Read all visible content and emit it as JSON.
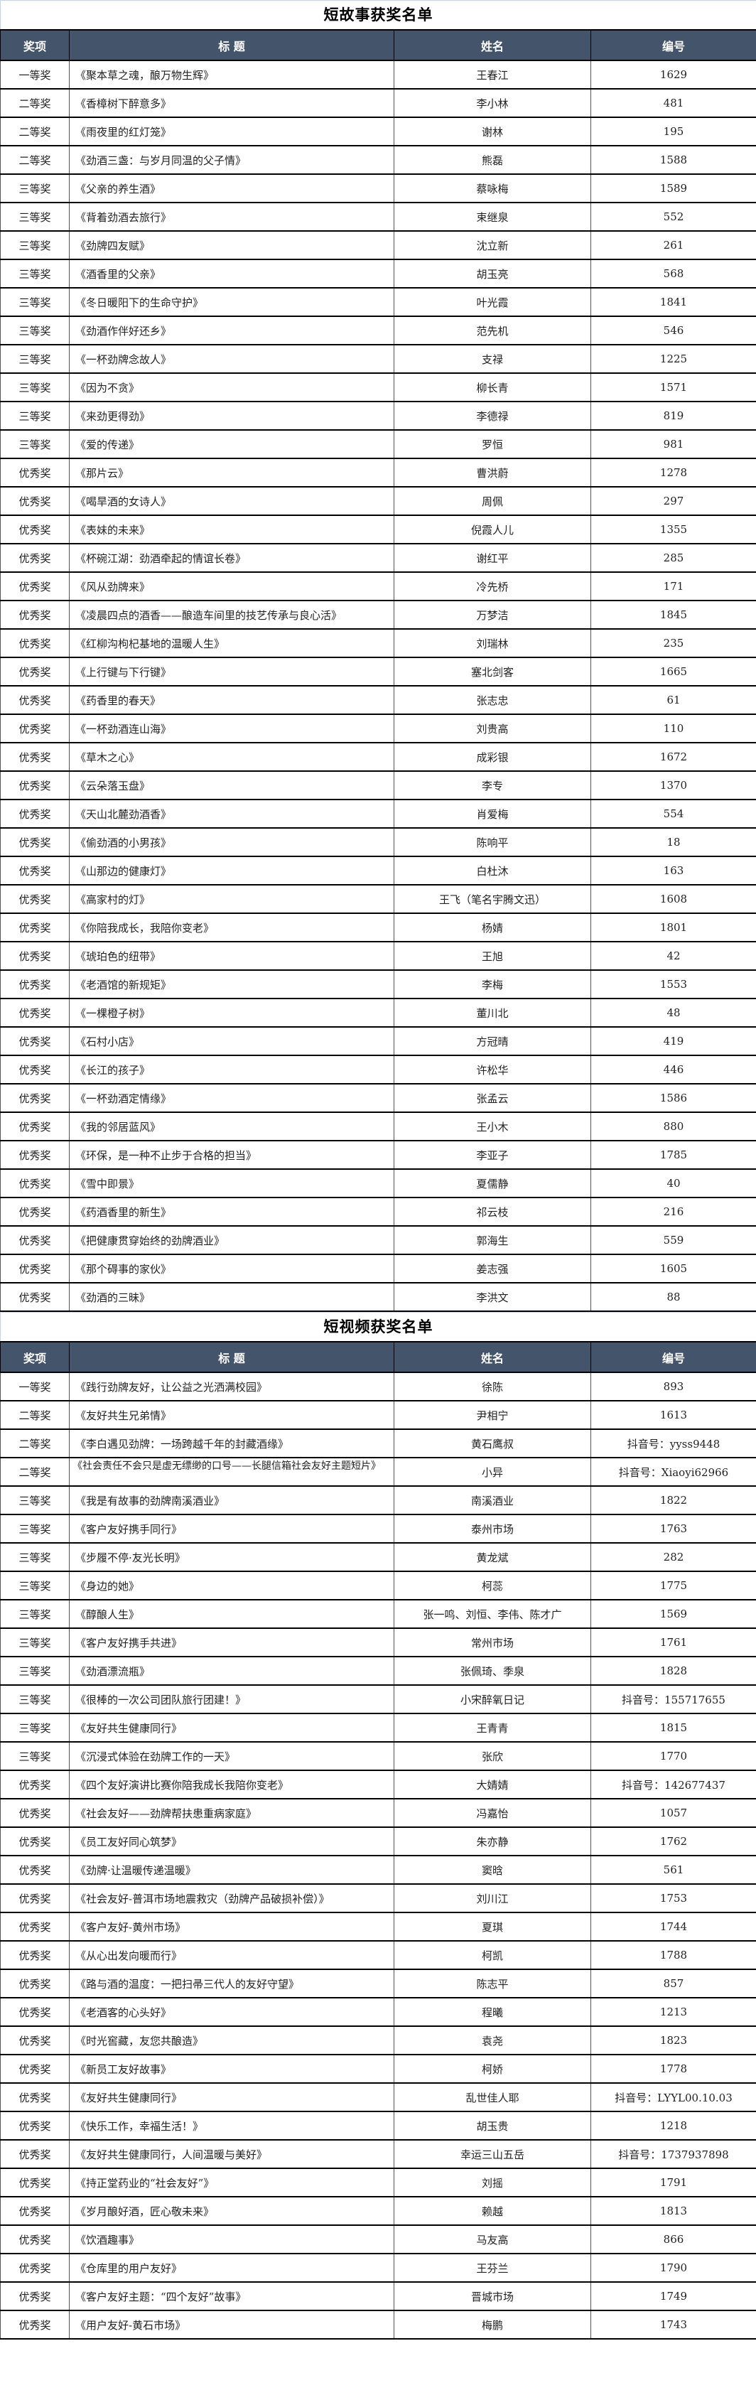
{
  "header_bg": "#44546a",
  "columns": {
    "award": "奖项",
    "title": "标  题",
    "name": "姓名",
    "number": "编号"
  },
  "tables": [
    {
      "title": "短故事获奖名单",
      "rows": [
        [
          "一等奖",
          "《聚本草之魂，酿万物生辉》",
          "王春江",
          "1629"
        ],
        [
          "二等奖",
          "《香樟树下醉意多》",
          "李小林",
          "481"
        ],
        [
          "二等奖",
          "《雨夜里的红灯笼》",
          "谢林",
          "195"
        ],
        [
          "二等奖",
          "《劲酒三盏：与岁月同温的父子情》",
          "熊磊",
          "1588"
        ],
        [
          "三等奖",
          "《父亲的养生酒》",
          "蔡咏梅",
          "1589"
        ],
        [
          "三等奖",
          "《背着劲酒去旅行》",
          "束继泉",
          "552"
        ],
        [
          "三等奖",
          "《劲牌四友赋》",
          "沈立新",
          "261"
        ],
        [
          "三等奖",
          "《酒香里的父亲》",
          "胡玉亮",
          "568"
        ],
        [
          "三等奖",
          "《冬日暖阳下的生命守护》",
          "叶光霞",
          "1841"
        ],
        [
          "三等奖",
          "《劲酒作伴好还乡》",
          "范先机",
          "546"
        ],
        [
          "三等奖",
          "《一杯劲牌念故人》",
          "支禄",
          "1225"
        ],
        [
          "三等奖",
          "《因为不贪》",
          "柳长青",
          "1571"
        ],
        [
          "三等奖",
          "《来劲更得劲》",
          "李德禄",
          "819"
        ],
        [
          "三等奖",
          "《爱的传递》",
          "罗恒",
          "981"
        ],
        [
          "优秀奖",
          "《那片云》",
          "曹洪蔚",
          "1278"
        ],
        [
          "优秀奖",
          "《喝旱酒的女诗人》",
          "周佩",
          "297"
        ],
        [
          "优秀奖",
          "《表妹的未来》",
          "倪霞人儿",
          "1355"
        ],
        [
          "优秀奖",
          "《杯碗江湖：劲酒牵起的情谊长卷》",
          "谢红平",
          "285"
        ],
        [
          "优秀奖",
          "《风从劲牌来》",
          "冷先桥",
          "171"
        ],
        [
          "优秀奖",
          "《凌晨四点的酒香——酿造车间里的技艺传承与良心活》",
          "万梦洁",
          "1845"
        ],
        [
          "优秀奖",
          "《红柳沟枸杞基地的温暖人生》",
          "刘瑞林",
          "235"
        ],
        [
          "优秀奖",
          "《上行键与下行键》",
          "塞北剑客",
          "1665"
        ],
        [
          "优秀奖",
          "《药香里的春天》",
          "张志忠",
          "61"
        ],
        [
          "优秀奖",
          "《一杯劲酒连山海》",
          "刘贵高",
          "110"
        ],
        [
          "优秀奖",
          "《草木之心》",
          "成彩银",
          "1672"
        ],
        [
          "优秀奖",
          "《云朵落玉盘》",
          "李专",
          "1370"
        ],
        [
          "优秀奖",
          "《天山北麓劲酒香》",
          "肖爱梅",
          "554"
        ],
        [
          "优秀奖",
          "《偷劲酒的小男孩》",
          "陈响平",
          "18"
        ],
        [
          "优秀奖",
          "《山那边的健康灯》",
          "白杜沐",
          "163"
        ],
        [
          "优秀奖",
          "《高家村的灯》",
          "王飞（笔名宇腾文迅）",
          "1608"
        ],
        [
          "优秀奖",
          "《你陪我成长，我陪你变老》",
          "杨婧",
          "1801"
        ],
        [
          "优秀奖",
          "《琥珀色的纽带》",
          "王旭",
          "42"
        ],
        [
          "优秀奖",
          "《老酒馆的新规矩》",
          "李梅",
          "1553"
        ],
        [
          "优秀奖",
          "《一棵橙子树》",
          "董川北",
          "48"
        ],
        [
          "优秀奖",
          "《石村小店》",
          "方冠晴",
          "419"
        ],
        [
          "优秀奖",
          "《长江的孩子》",
          "许松华",
          "446"
        ],
        [
          "优秀奖",
          "《一杯劲酒定情缘》",
          "张孟云",
          "1586"
        ],
        [
          "优秀奖",
          "《我的邻居蓝风》",
          "王小木",
          "880"
        ],
        [
          "优秀奖",
          "《环保，是一种不止步于合格的担当》",
          "李亚子",
          "1785"
        ],
        [
          "优秀奖",
          "《雪中即景》",
          "夏儒静",
          "40"
        ],
        [
          "优秀奖",
          "《药酒香里的新生》",
          "祁云枝",
          "216"
        ],
        [
          "优秀奖",
          "《把健康贯穿始终的劲牌酒业》",
          "郭海生",
          "559"
        ],
        [
          "优秀奖",
          "《那个碍事的家伙》",
          "姜志强",
          "1605"
        ],
        [
          "优秀奖",
          "《劲酒的三昧》",
          "李洪文",
          "88"
        ]
      ]
    },
    {
      "title": "短视频获奖名单",
      "rows": [
        [
          "一等奖",
          "《践行劲牌友好，让公益之光洒满校园》",
          "徐陈",
          "893"
        ],
        [
          "二等奖",
          "《友好共生兄弟情》",
          "尹相宁",
          "1613"
        ],
        [
          "二等奖",
          "《李白遇见劲牌：一场跨越千年的封藏酒缘》",
          "黄石鹰叔",
          "抖音号：yyss9448"
        ],
        [
          "二等奖",
          "《社会责任不会只是虚无缥缈的口号——长腿信箱社会友好主题短片》",
          "小异",
          "抖音号：Xiaoyi62966"
        ],
        [
          "三等奖",
          "《我是有故事的劲牌南溪酒业》",
          "南溪酒业",
          "1822"
        ],
        [
          "三等奖",
          "《客户友好携手同行》",
          "泰州市场",
          "1763"
        ],
        [
          "三等奖",
          "《步履不停·友光长明》",
          "黄龙斌",
          "282"
        ],
        [
          "三等奖",
          "《身边的她》",
          "柯蕊",
          "1775"
        ],
        [
          "三等奖",
          "《醇酿人生》",
          "张一鸣、刘恒、李伟、陈才广",
          "1569"
        ],
        [
          "三等奖",
          "《客户友好携手共进》",
          "常州市场",
          "1761"
        ],
        [
          "三等奖",
          "《劲酒漂流瓶》",
          "张佩琦、季泉",
          "1828"
        ],
        [
          "三等奖",
          "《很棒的一次公司团队旅行团建！》",
          "小宋醉氧日记",
          "抖音号：155717655"
        ],
        [
          "三等奖",
          "《友好共生健康同行》",
          "王青青",
          "1815"
        ],
        [
          "三等奖",
          "《沉浸式体验在劲牌工作的一天》",
          "张欣",
          "1770"
        ],
        [
          "优秀奖",
          "《四个友好演讲比赛你陪我成长我陪你变老》",
          "大婧婧",
          "抖音号：142677437"
        ],
        [
          "优秀奖",
          "《社会友好——劲牌帮扶患重病家庭》",
          "冯嘉怡",
          "1057"
        ],
        [
          "优秀奖",
          "《员工友好同心筑梦》",
          "朱亦静",
          "1762"
        ],
        [
          "优秀奖",
          "《劲牌·让温暖传递温暖》",
          "窦晗",
          "561"
        ],
        [
          "优秀奖",
          "《社会友好-普洱市场地震救灾（劲牌产品破损补偿）》",
          "刘川江",
          "1753"
        ],
        [
          "优秀奖",
          "《客户友好-黄州市场》",
          "夏琪",
          "1744"
        ],
        [
          "优秀奖",
          "《从心出发向暖而行》",
          "柯凯",
          "1788"
        ],
        [
          "优秀奖",
          "《路与酒的温度：一把扫帚三代人的友好守望》",
          "陈志平",
          "857"
        ],
        [
          "优秀奖",
          "《老酒客的心头好》",
          "程曦",
          "1213"
        ],
        [
          "优秀奖",
          "《时光窖藏，友您共酿造》",
          "袁尧",
          "1823"
        ],
        [
          "优秀奖",
          "《新员工友好故事》",
          "柯娇",
          "1778"
        ],
        [
          "优秀奖",
          "《友好共生健康同行》",
          "乱世佳人耶",
          "抖音号：LYYL00.10.03"
        ],
        [
          "优秀奖",
          "《快乐工作，幸福生活！》",
          "胡玉贵",
          "1218"
        ],
        [
          "优秀奖",
          "《友好共生健康同行，人间温暖与美好》",
          "幸运三山五岳",
          "抖音号：1737937898"
        ],
        [
          "优秀奖",
          "《持正堂药业的“社会友好”》",
          "刘摇",
          "1791"
        ],
        [
          "优秀奖",
          "《岁月酿好酒，匠心敬未来》",
          "赖越",
          "1813"
        ],
        [
          "优秀奖",
          "《饮酒趣事》",
          "马友高",
          "866"
        ],
        [
          "优秀奖",
          "《仓库里的用户友好》",
          "王芬兰",
          "1790"
        ],
        [
          "优秀奖",
          "《客户友好主题：“四个友好”故事》",
          "晋城市场",
          "1749"
        ],
        [
          "优秀奖",
          "《用户友好-黄石市场》",
          "梅鹏",
          "1743"
        ]
      ]
    }
  ]
}
